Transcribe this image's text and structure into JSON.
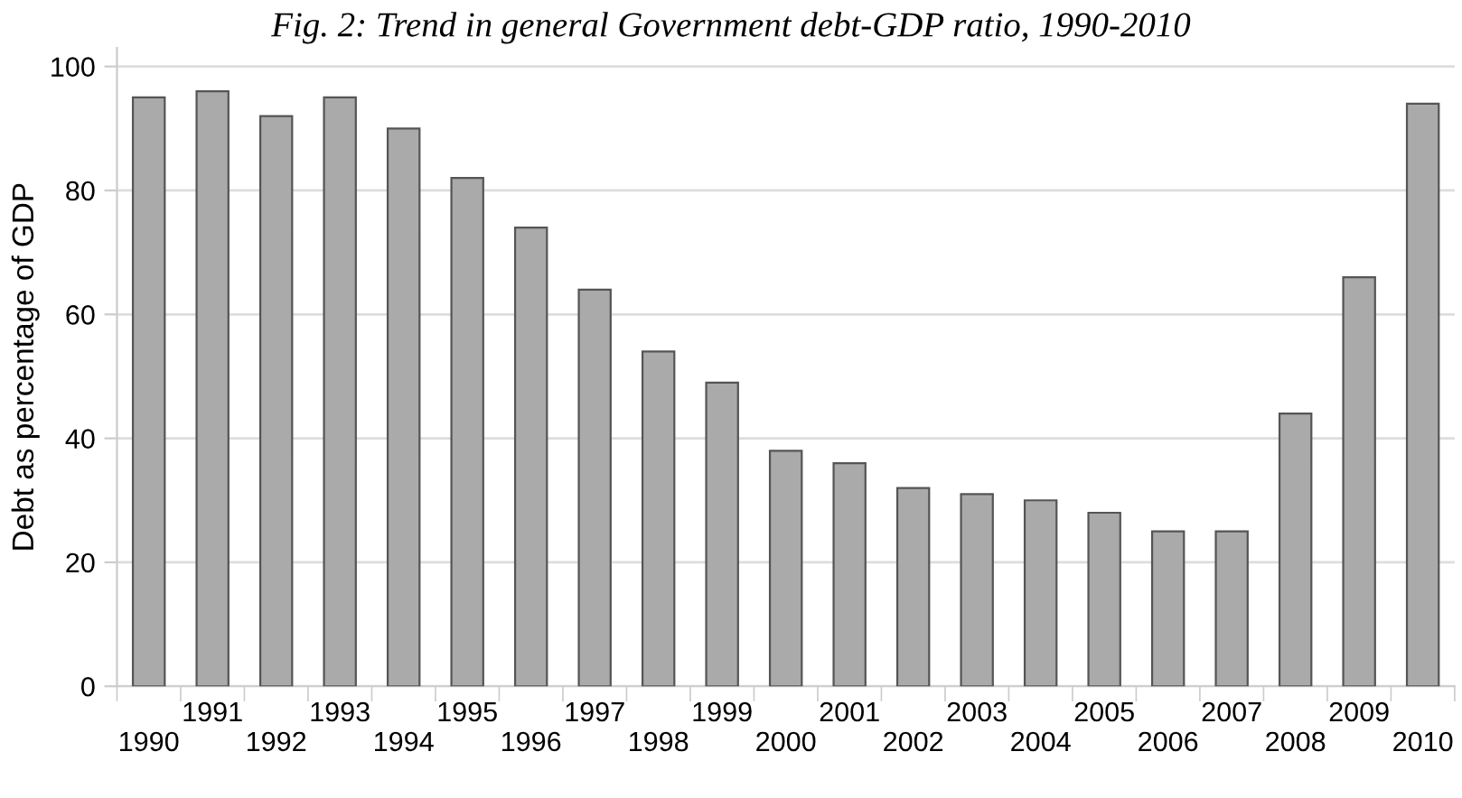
{
  "chart_data": {
    "type": "bar",
    "title": "Fig. 2: Trend in general Government debt-GDP ratio, 1990-2010",
    "ylabel": "Debt as percentage of GDP",
    "categories": [
      "1990",
      "1991",
      "1992",
      "1993",
      "1994",
      "1995",
      "1996",
      "1997",
      "1998",
      "1999",
      "2000",
      "2001",
      "2002",
      "2003",
      "2004",
      "2005",
      "2006",
      "2007",
      "2008",
      "2009",
      "2010"
    ],
    "values": [
      95,
      96,
      92,
      95,
      90,
      82,
      74,
      64,
      54,
      49,
      38,
      36,
      32,
      31,
      30,
      28,
      25,
      25,
      44,
      66,
      94
    ],
    "color": "#aaaaaa",
    "ylim": [
      0,
      103
    ],
    "yticks": [
      0,
      20,
      40,
      60,
      80,
      100
    ],
    "grid": "y"
  }
}
